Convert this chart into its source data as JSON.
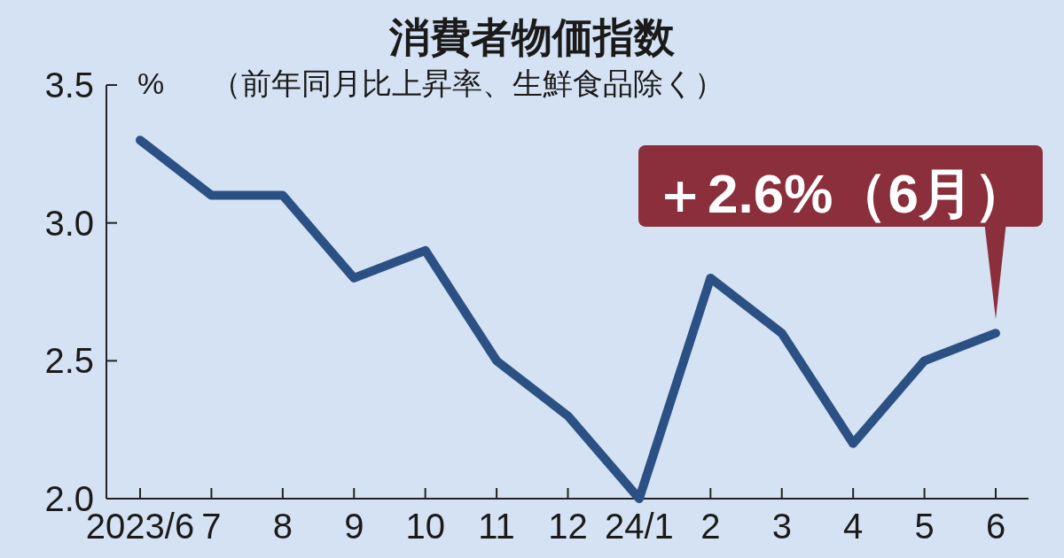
{
  "chart_data": {
    "type": "line",
    "title": "消費者物価指数",
    "subtitle": "（前年同月比上昇率、生鮮食品除く）",
    "ylabel": "%",
    "categories": [
      "2023/6",
      "7",
      "8",
      "9",
      "10",
      "11",
      "12",
      "24/1",
      "2",
      "3",
      "4",
      "5",
      "6"
    ],
    "series": [
      {
        "color": "#2b5184",
        "values": [
          3.3,
          3.1,
          3.1,
          2.8,
          2.9,
          2.5,
          2.3,
          2.0,
          2.8,
          2.6,
          2.2,
          2.5,
          2.6
        ]
      }
    ],
    "ylim": [
      2.0,
      3.5
    ],
    "yticks": [
      {
        "value": 2.0,
        "label": "2.0"
      },
      {
        "value": 2.5,
        "label": "2.5"
      },
      {
        "value": 3.0,
        "label": "3.0"
      },
      {
        "value": 3.5,
        "label": "3.5"
      }
    ],
    "grid": false,
    "line_style": "solid",
    "annotations": [
      {
        "text": "＋2.6%（6月）",
        "x": "6",
        "y": 2.6
      }
    ]
  }
}
